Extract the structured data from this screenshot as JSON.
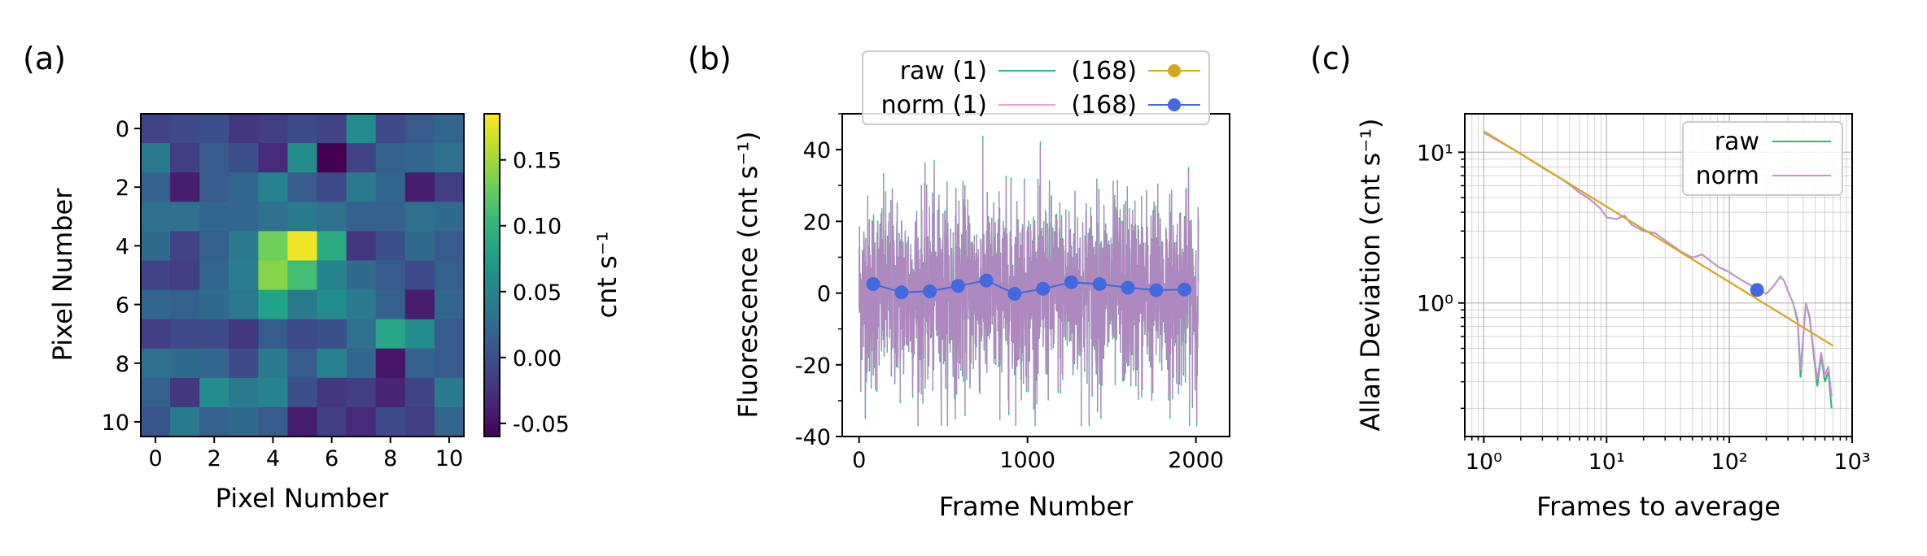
{
  "panels": {
    "a": "(a)",
    "b": "(b)",
    "c": "(c)"
  },
  "chart_data": [
    {
      "type": "heatmap",
      "panel": "(a)",
      "xlabel": "Pixel Number",
      "ylabel": "Pixel Number",
      "xticks": [
        "0",
        "2",
        "4",
        "6",
        "8",
        "10"
      ],
      "yticks": [
        "0",
        "2",
        "4",
        "6",
        "8",
        "10"
      ],
      "colorbar_label": "cnt s⁻¹",
      "colorbar_ticks": [
        "-0.05",
        "0.00",
        "0.05",
        "0.10",
        "0.15"
      ],
      "colorbar_range": [
        -0.06,
        0.185
      ],
      "colormap": [
        "#440154",
        "#482878",
        "#3e4989",
        "#31688e",
        "#26828e",
        "#1f9e89",
        "#35b779",
        "#6ece58",
        "#b5de2b",
        "#fde725"
      ],
      "values": [
        [
          -0.01,
          -0.005,
          0.0,
          -0.02,
          -0.015,
          -0.005,
          -0.01,
          0.06,
          -0.005,
          0.01,
          0.02
        ],
        [
          0.04,
          -0.015,
          0.01,
          0.0,
          -0.03,
          0.06,
          -0.06,
          -0.01,
          0.015,
          0.02,
          0.03
        ],
        [
          0.015,
          -0.04,
          0.01,
          0.02,
          0.05,
          0.01,
          -0.005,
          0.04,
          0.02,
          -0.04,
          -0.015
        ],
        [
          0.03,
          0.03,
          0.02,
          0.02,
          0.03,
          0.04,
          0.03,
          0.015,
          0.015,
          0.03,
          0.025
        ],
        [
          0.025,
          -0.01,
          0.015,
          0.04,
          0.13,
          0.18,
          0.09,
          -0.02,
          0.0,
          0.025,
          0.01
        ],
        [
          -0.01,
          -0.015,
          0.02,
          0.045,
          0.14,
          0.11,
          0.05,
          0.025,
          0.01,
          -0.005,
          0.015
        ],
        [
          0.02,
          0.015,
          0.025,
          0.04,
          0.08,
          0.04,
          0.06,
          0.04,
          0.015,
          -0.04,
          0.02
        ],
        [
          -0.015,
          -0.005,
          -0.005,
          -0.02,
          0.01,
          -0.005,
          0.0,
          0.03,
          0.085,
          0.06,
          0.01
        ],
        [
          0.03,
          0.025,
          0.02,
          -0.005,
          0.04,
          0.01,
          0.05,
          0.02,
          -0.045,
          0.015,
          0.01
        ],
        [
          0.015,
          -0.02,
          0.06,
          0.04,
          0.05,
          0.0,
          -0.02,
          -0.015,
          -0.035,
          -0.01,
          0.04
        ],
        [
          0.005,
          0.04,
          0.015,
          0.025,
          0.01,
          -0.04,
          -0.015,
          -0.03,
          -0.005,
          -0.015,
          0.02
        ]
      ]
    },
    {
      "type": "line",
      "panel": "(b)",
      "xlabel": "Frame Number",
      "ylabel": "Fluorescence (cnt s⁻¹)",
      "xlim": [
        -100,
        2200
      ],
      "ylim": [
        -40,
        50
      ],
      "xticks": [
        "0",
        "1000",
        "2000"
      ],
      "yticks": [
        "-40",
        "-20",
        "0",
        "20",
        "40"
      ],
      "legend": [
        "raw (1)",
        "(168)",
        "norm (1)",
        "(168)"
      ],
      "noisy_series": {
        "names": [
          "raw (1)",
          "norm (1)"
        ],
        "colors": [
          "#2bb673",
          "#b088c0"
        ],
        "n_frames": 2016,
        "mean": 0,
        "approx_std": 13,
        "min": -36,
        "max": 44
      },
      "series": [
        {
          "name": "raw (168)",
          "color": "#d9a51c",
          "x": [
            84,
            252,
            420,
            588,
            756,
            924,
            1092,
            1260,
            1428,
            1596,
            1764,
            1932
          ],
          "values": [
            2.5,
            0.2,
            0.5,
            2.0,
            3.5,
            -0.2,
            1.2,
            3.0,
            2.5,
            1.5,
            0.8,
            1.0
          ]
        },
        {
          "name": "norm (168)",
          "color": "#4169e1",
          "x": [
            84,
            252,
            420,
            588,
            756,
            924,
            1092,
            1260,
            1428,
            1596,
            1764,
            1932
          ],
          "values": [
            2.5,
            0.2,
            0.5,
            2.0,
            3.5,
            -0.2,
            1.2,
            3.0,
            2.5,
            1.5,
            0.8,
            1.0
          ]
        }
      ]
    },
    {
      "type": "line",
      "panel": "(c)",
      "scale": "log-log",
      "xlabel": "Frames to average",
      "ylabel": "Allan Deviation (cnt s⁻¹)",
      "xlim": [
        0.7,
        1000
      ],
      "ylim": [
        0.13,
        18
      ],
      "xticks": [
        "10⁰",
        "10¹",
        "10²",
        "10³"
      ],
      "yticks": [
        "10⁰",
        "10¹"
      ],
      "grid": true,
      "legend": [
        "raw",
        "norm"
      ],
      "fit_line": {
        "color": "#d9a51c",
        "x": [
          1,
          700
        ],
        "values": [
          13.8,
          0.52
        ]
      },
      "point": {
        "color": "#4169e1",
        "x": 168,
        "value": 1.22
      },
      "series": [
        {
          "name": "raw",
          "color": "#2bb673",
          "x": [
            1,
            1.5,
            2,
            3,
            4,
            5,
            6,
            7,
            8,
            9,
            10,
            12,
            14,
            16,
            20,
            25,
            30,
            40,
            50,
            60,
            70,
            80,
            100,
            120,
            140,
            168,
            200,
            230,
            260,
            280,
            300,
            330,
            360,
            380,
            400,
            420,
            450,
            480,
            520,
            560,
            600,
            640,
            680
          ],
          "values": [
            13.5,
            11.2,
            9.8,
            7.9,
            6.9,
            6.1,
            5.4,
            5.0,
            4.6,
            4.2,
            3.7,
            3.6,
            3.8,
            3.3,
            3.0,
            2.9,
            2.6,
            2.2,
            2.0,
            2.1,
            1.9,
            1.75,
            1.6,
            1.45,
            1.35,
            1.25,
            1.15,
            1.3,
            1.5,
            1.4,
            1.2,
            1.0,
            0.75,
            0.32,
            0.6,
            1.0,
            0.8,
            0.5,
            0.28,
            0.45,
            0.3,
            0.35,
            0.2
          ]
        },
        {
          "name": "norm",
          "color": "#c98fd0",
          "x": [
            1,
            1.5,
            2,
            3,
            4,
            5,
            6,
            7,
            8,
            9,
            10,
            12,
            14,
            16,
            20,
            25,
            30,
            40,
            50,
            60,
            70,
            80,
            100,
            120,
            140,
            168,
            200,
            230,
            260,
            280,
            300,
            330,
            360,
            380,
            400,
            420,
            450,
            480,
            520,
            560,
            600,
            640,
            680
          ],
          "values": [
            13.5,
            11.2,
            9.8,
            7.9,
            6.9,
            6.1,
            5.4,
            5.0,
            4.6,
            4.2,
            3.7,
            3.6,
            3.8,
            3.3,
            3.0,
            2.9,
            2.6,
            2.2,
            2.0,
            2.1,
            1.9,
            1.75,
            1.6,
            1.45,
            1.35,
            1.25,
            1.15,
            1.3,
            1.5,
            1.4,
            1.2,
            1.0,
            0.78,
            0.36,
            0.62,
            1.0,
            0.82,
            0.52,
            0.31,
            0.47,
            0.33,
            0.38,
            0.24
          ]
        }
      ]
    }
  ]
}
